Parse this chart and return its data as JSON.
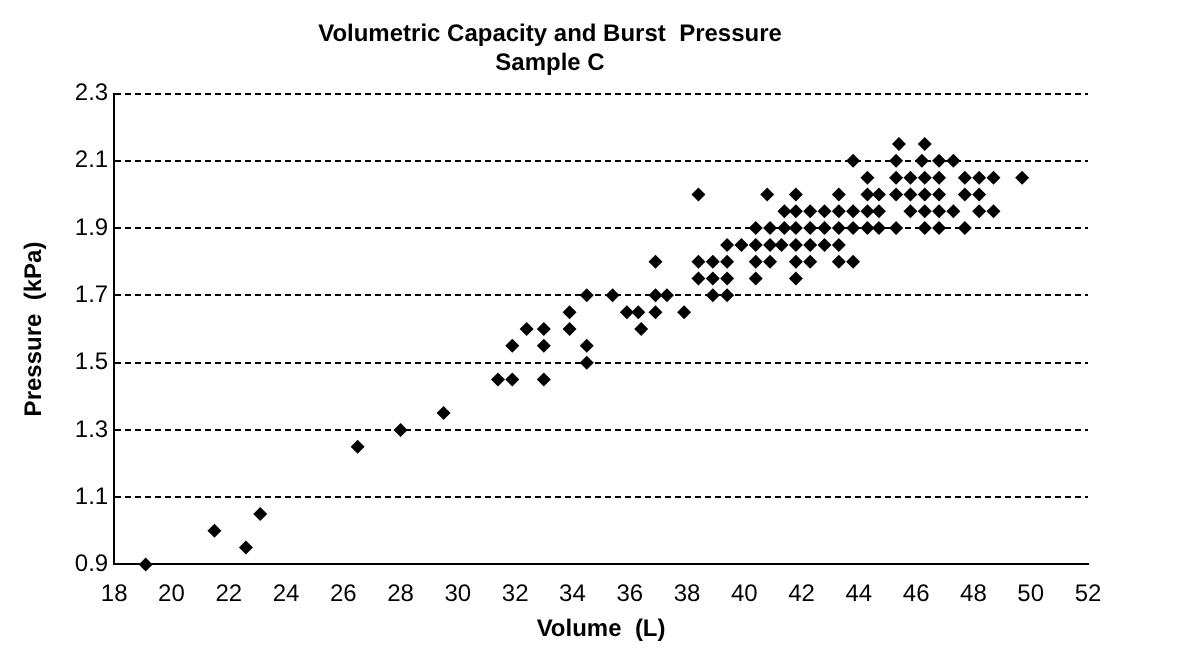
{
  "chart_data": {
    "type": "scatter",
    "title": "Volumetric Capacity and Burst  Pressure",
    "subtitle": "Sample C",
    "xlabel": "Volume  (L)",
    "ylabel": "Pressure  (kPa)",
    "xlim": [
      18,
      52
    ],
    "xticks": [
      18,
      20,
      22,
      24,
      26,
      28,
      30,
      32,
      34,
      36,
      38,
      40,
      42,
      44,
      46,
      48,
      50,
      52
    ],
    "ylim": [
      0.9,
      2.3
    ],
    "yticks": [
      0.9,
      1.1,
      1.3,
      1.5,
      1.7,
      1.9,
      2.1,
      2.3
    ],
    "grid": "y",
    "legend": false,
    "marker": "diamond",
    "series": [
      {
        "color": "#000000",
        "x": [
          19.1,
          21.5,
          22.6,
          23.1,
          26.5,
          28.0,
          29.5,
          31.4,
          31.9,
          31.9,
          32.4,
          33.0,
          33.0,
          33.0,
          33.9,
          33.9,
          34.5,
          34.5,
          34.5,
          35.4,
          35.9,
          36.3,
          36.9,
          36.4,
          36.9,
          37.3,
          36.9,
          37.9,
          38.4,
          38.4,
          38.9,
          39.4,
          38.4,
          38.9,
          39.4,
          38.9,
          39.4,
          39.4,
          39.9,
          40.4,
          40.9,
          41.3,
          41.8,
          42.3,
          42.8,
          40.4,
          40.9,
          41.8,
          42.3,
          43.3,
          40.4,
          41.8,
          40.4,
          40.9,
          41.4,
          41.8,
          42.3,
          42.8,
          43.3,
          43.8,
          44.3,
          44.7,
          45.3,
          46.3,
          46.8,
          41.4,
          41.8,
          42.3,
          42.8,
          43.3,
          43.8,
          44.3,
          44.7,
          45.8,
          46.3,
          46.8,
          47.3,
          48.2,
          40.8,
          41.8,
          43.3,
          44.3,
          44.7,
          45.3,
          45.8,
          46.3,
          46.8,
          47.7,
          48.2,
          44.3,
          45.3,
          45.8,
          46.3,
          46.8,
          47.7,
          48.2,
          48.7,
          49.7,
          43.8,
          45.3,
          46.2,
          46.8,
          47.3,
          45.4,
          46.3,
          43.3,
          43.8,
          47.7,
          48.7
        ],
        "values": [
          0.9,
          1.0,
          0.95,
          1.05,
          1.25,
          1.3,
          1.35,
          1.45,
          1.45,
          1.55,
          1.6,
          1.6,
          1.55,
          1.45,
          1.65,
          1.6,
          1.55,
          1.5,
          1.7,
          1.7,
          1.65,
          1.65,
          1.65,
          1.6,
          1.7,
          1.7,
          1.8,
          1.65,
          2.0,
          1.8,
          1.8,
          1.8,
          1.75,
          1.75,
          1.75,
          1.7,
          1.7,
          1.85,
          1.85,
          1.85,
          1.85,
          1.85,
          1.85,
          1.85,
          1.85,
          1.8,
          1.8,
          1.8,
          1.8,
          1.8,
          1.75,
          1.75,
          1.9,
          1.9,
          1.9,
          1.9,
          1.9,
          1.9,
          1.9,
          1.9,
          1.9,
          1.9,
          1.9,
          1.9,
          1.9,
          1.95,
          1.95,
          1.95,
          1.95,
          1.95,
          1.95,
          1.95,
          1.95,
          1.95,
          1.95,
          1.95,
          1.95,
          1.95,
          2.0,
          2.0,
          2.0,
          2.0,
          2.0,
          2.0,
          2.0,
          2.0,
          2.0,
          2.0,
          2.0,
          2.05,
          2.05,
          2.05,
          2.05,
          2.05,
          2.05,
          2.05,
          2.05,
          2.05,
          2.1,
          2.1,
          2.1,
          2.1,
          2.1,
          2.15,
          2.15,
          1.85,
          1.8,
          1.9,
          1.95
        ]
      }
    ]
  }
}
